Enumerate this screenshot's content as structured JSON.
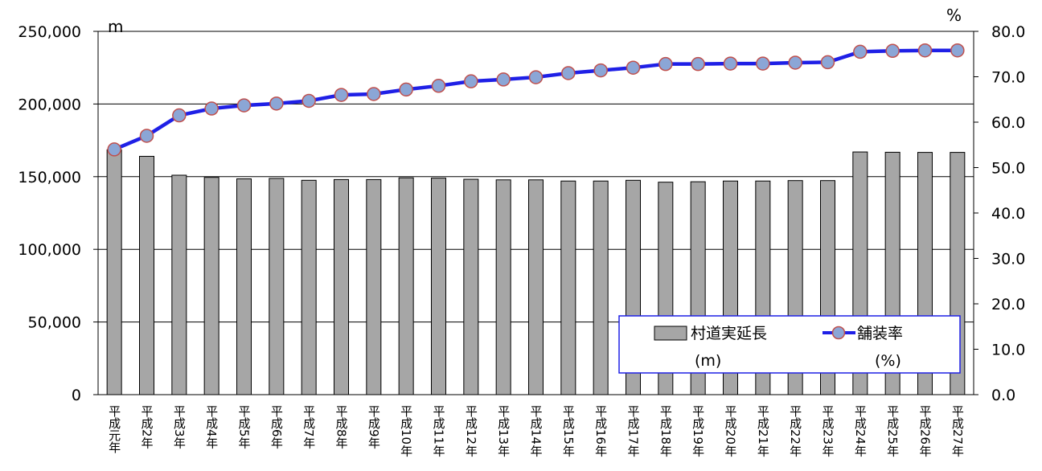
{
  "chart_data": {
    "type": "bar",
    "categories": [
      "平成元年",
      "平成2年",
      "平成3年",
      "平成4年",
      "平成5年",
      "平成6年",
      "平成7年",
      "平成8年",
      "平成9年",
      "平成10年",
      "平成11年",
      "平成12年",
      "平成13年",
      "平成14年",
      "平成15年",
      "平成16年",
      "平成17年",
      "平成18年",
      "平成19年",
      "平成20年",
      "平成21年",
      "平成22年",
      "平成23年",
      "平成24年",
      "平成25年",
      "平成26年",
      "平成27年"
    ],
    "series": [
      {
        "name": "村道実延長(m)",
        "type": "bar",
        "axis": "left",
        "color": "#a6a6a6",
        "values": [
          168500,
          164000,
          151000,
          149500,
          148500,
          148800,
          147500,
          148000,
          148000,
          149200,
          149000,
          148200,
          147800,
          147800,
          147000,
          147000,
          147500,
          146200,
          146500,
          147000,
          147000,
          147300,
          147300,
          167000,
          166800,
          166700,
          166700
        ]
      },
      {
        "name": "舗装率(%)",
        "type": "line",
        "axis": "right",
        "color": "#1f20e6",
        "marker_color": "#8ba6d6",
        "values": [
          54.0,
          57.0,
          61.5,
          63.0,
          63.7,
          64.1,
          64.7,
          66.0,
          66.2,
          67.2,
          68.0,
          69.0,
          69.4,
          69.9,
          70.8,
          71.4,
          72.0,
          72.8,
          72.8,
          72.9,
          72.9,
          73.1,
          73.2,
          75.5,
          75.7,
          75.8,
          75.8
        ]
      }
    ],
    "y_left": {
      "unit": "m",
      "ylim": [
        0,
        250000
      ],
      "ticks": [
        "0",
        "50,000",
        "100,000",
        "150,000",
        "200,000",
        "250,000"
      ]
    },
    "y_right": {
      "unit": "%",
      "ylim": [
        0,
        80
      ],
      "ticks": [
        "0.0",
        "10.0",
        "20.0",
        "30.0",
        "40.0",
        "50.0",
        "60.0",
        "70.0",
        "80.0"
      ]
    },
    "grid": true,
    "legend": {
      "position": "bottom-right",
      "items": [
        {
          "label": "村道実延長",
          "unit": "(m)"
        },
        {
          "label": "舗装率",
          "unit": "(%)"
        }
      ]
    }
  }
}
